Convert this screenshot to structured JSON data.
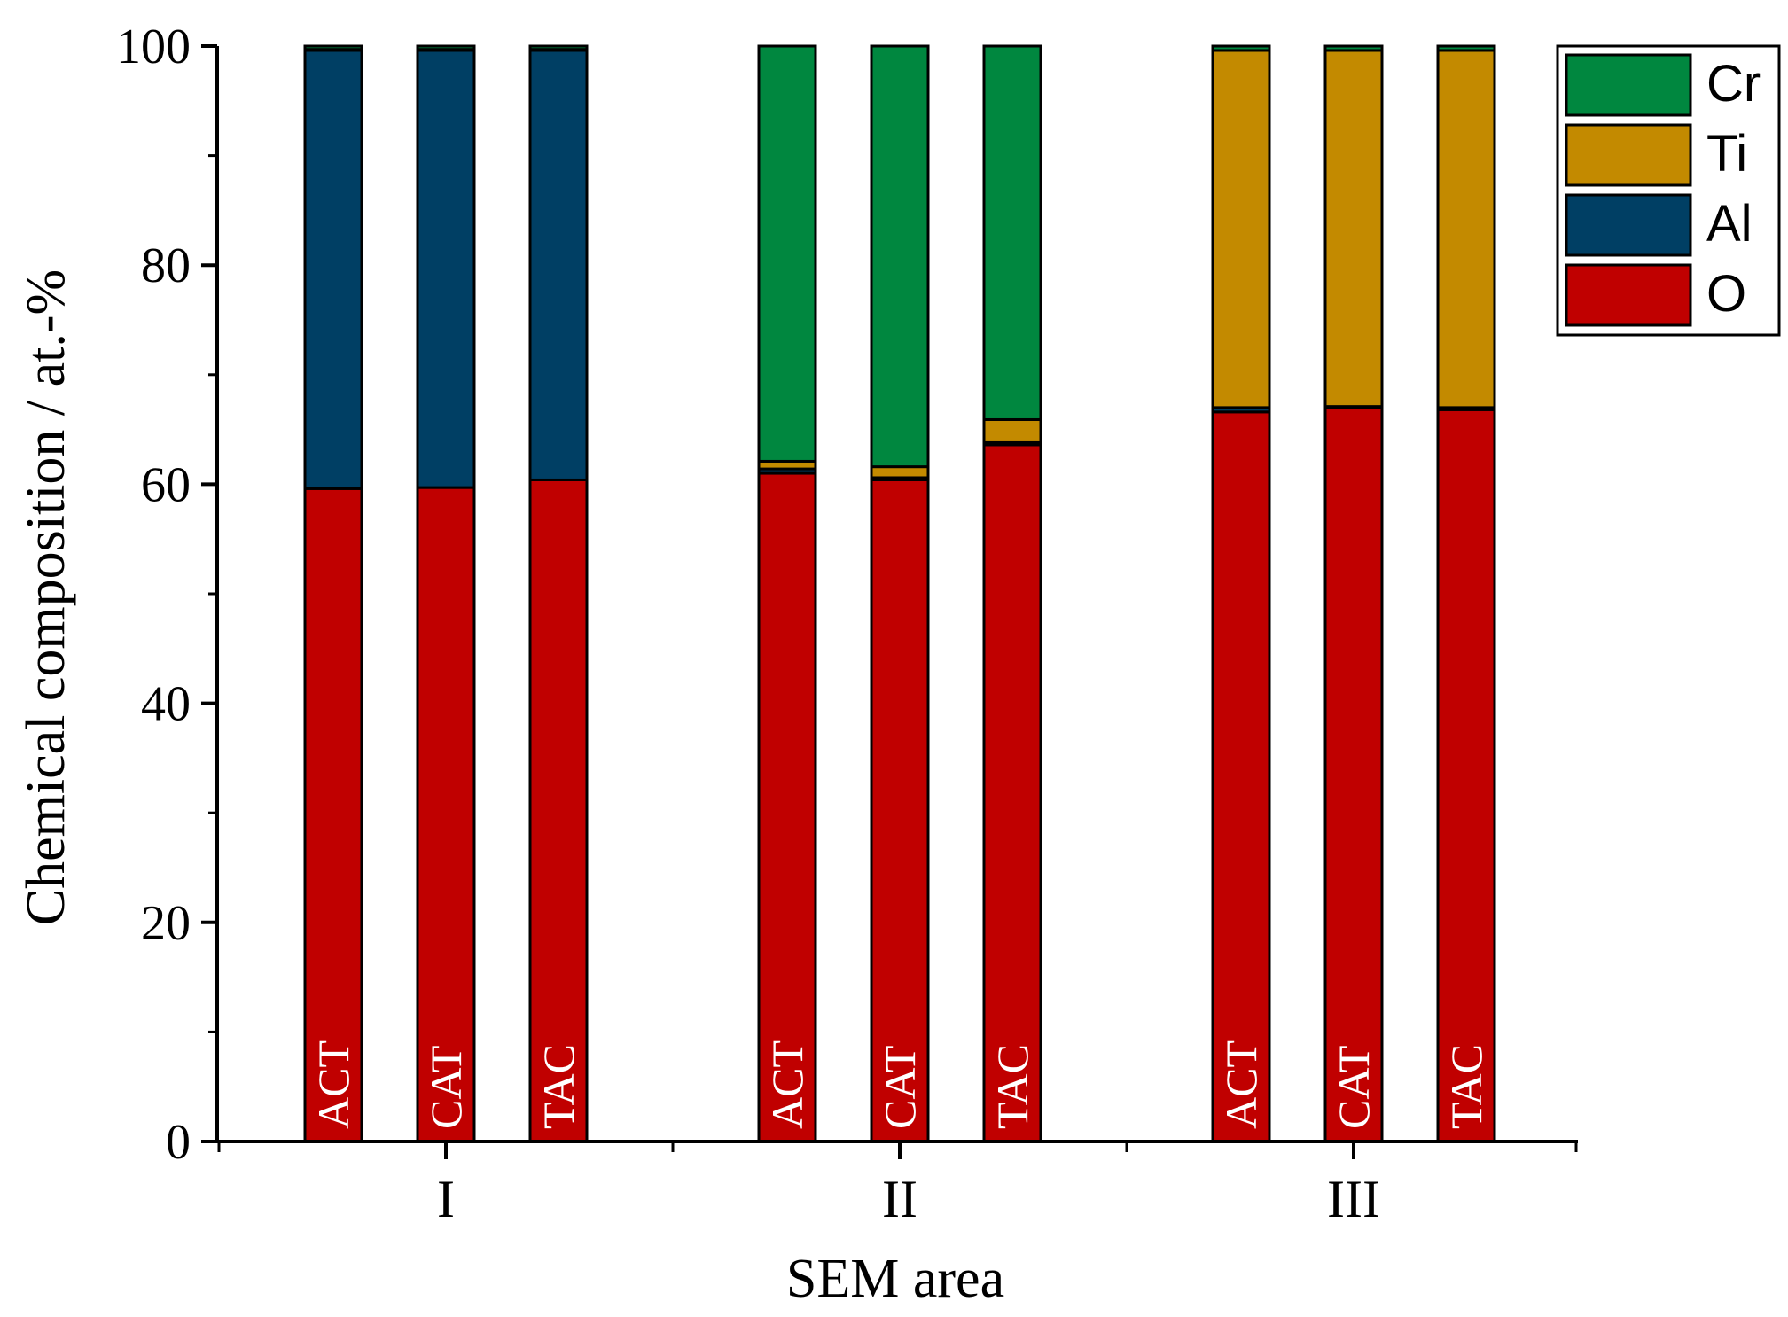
{
  "chart_data": {
    "type": "bar",
    "stacked": true,
    "xlabel": "SEM area",
    "ylabel": "Chemical composition / at.-%",
    "ylim": [
      0,
      100
    ],
    "yticks": [
      0,
      20,
      40,
      60,
      80,
      100
    ],
    "groups": [
      "I",
      "II",
      "III"
    ],
    "bars": [
      {
        "group": "I",
        "label": "ACT",
        "values": {
          "O": 59.6,
          "Al": 40.0,
          "Ti": 0.1,
          "Cr": 0.3
        }
      },
      {
        "group": "I",
        "label": "CAT",
        "values": {
          "O": 59.7,
          "Al": 39.9,
          "Ti": 0.1,
          "Cr": 0.3
        }
      },
      {
        "group": "I",
        "label": "TAC",
        "values": {
          "O": 60.4,
          "Al": 39.2,
          "Ti": 0.1,
          "Cr": 0.3
        }
      },
      {
        "group": "II",
        "label": "ACT",
        "values": {
          "O": 61.0,
          "Al": 0.4,
          "Ti": 0.7,
          "Cr": 37.9
        }
      },
      {
        "group": "II",
        "label": "CAT",
        "values": {
          "O": 60.4,
          "Al": 0.2,
          "Ti": 1.0,
          "Cr": 38.4
        }
      },
      {
        "group": "II",
        "label": "TAC",
        "values": {
          "O": 63.6,
          "Al": 0.2,
          "Ti": 2.1,
          "Cr": 34.1
        }
      },
      {
        "group": "III",
        "label": "ACT",
        "values": {
          "O": 66.6,
          "Al": 0.4,
          "Ti": 32.6,
          "Cr": 0.4
        }
      },
      {
        "group": "III",
        "label": "CAT",
        "values": {
          "O": 67.0,
          "Al": 0.1,
          "Ti": 32.5,
          "Cr": 0.4
        }
      },
      {
        "group": "III",
        "label": "TAC",
        "values": {
          "O": 66.8,
          "Al": 0.2,
          "Ti": 32.6,
          "Cr": 0.4
        }
      }
    ],
    "series": [
      {
        "name": "O",
        "color": "#c00000"
      },
      {
        "name": "Al",
        "color": "#003f64"
      },
      {
        "name": "Ti",
        "color": "#c38a00"
      },
      {
        "name": "Cr",
        "color": "#00873f"
      }
    ],
    "legend_order": [
      "Cr",
      "Ti",
      "Al",
      "O"
    ],
    "legend_position": "top-right",
    "grid": false
  }
}
